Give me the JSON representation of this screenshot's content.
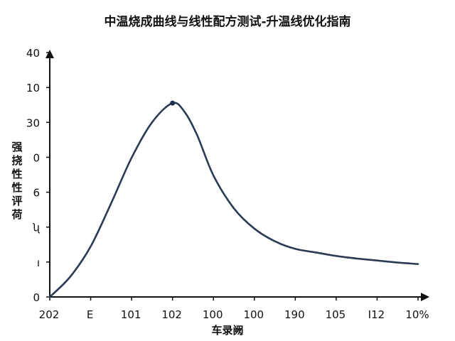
{
  "chart_data": {
    "type": "line",
    "title": "中温烧成曲线与线性配方测试-升温线优化指南",
    "xlabel": "车录阙",
    "ylabel": [
      "强",
      "挠",
      "性",
      "性",
      "评",
      "荷"
    ],
    "x_ticks": [
      "202",
      "E",
      "101",
      "102",
      "100",
      "100",
      "190",
      "105",
      "I12",
      "10%"
    ],
    "y_ticks": [
      "0",
      "ı",
      "ʯ",
      "6",
      "0",
      "30",
      "10",
      "40"
    ],
    "grid": false,
    "series": [
      {
        "color": "#2b3a55",
        "points": [
          [
            0.0,
            0.0
          ],
          [
            0.5,
            4.0
          ],
          [
            1.0,
            10.0
          ],
          [
            1.5,
            18.5
          ],
          [
            2.0,
            27.5
          ],
          [
            2.5,
            34.5
          ],
          [
            3.0,
            38.3
          ],
          [
            3.3,
            36.5
          ],
          [
            3.6,
            32.0
          ],
          [
            4.0,
            24.0
          ],
          [
            4.5,
            17.5
          ],
          [
            5.0,
            13.5
          ],
          [
            5.5,
            11.0
          ],
          [
            6.0,
            9.5
          ],
          [
            6.5,
            8.8
          ],
          [
            7.0,
            8.1
          ],
          [
            7.5,
            7.6
          ],
          [
            8.0,
            7.2
          ],
          [
            8.5,
            6.8
          ],
          [
            9.0,
            6.5
          ]
        ],
        "peak": [
          3.0,
          38.3
        ]
      }
    ],
    "xlim": [
      0,
      9
    ],
    "ylim": [
      0,
      48
    ]
  }
}
